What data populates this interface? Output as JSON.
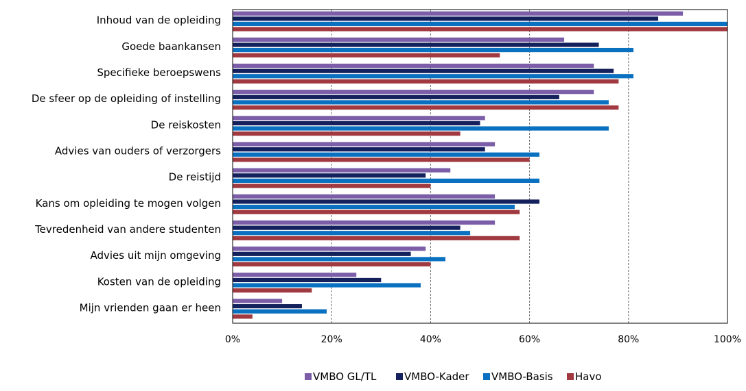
{
  "chart_data": {
    "type": "bar",
    "orientation": "horizontal",
    "categories": [
      "Inhoud van de opleiding",
      "Goede baankansen",
      "Specifieke beroepswens",
      "De sfeer op de opleiding of instelling",
      "De reiskosten",
      "Advies van ouders of verzorgers",
      "De reistijd",
      "Kans om opleiding te mogen volgen",
      "Tevredenheid van andere studenten",
      "Advies uit mijn omgeving",
      "Kosten van de opleiding",
      "Mijn vrienden gaan er heen"
    ],
    "series": [
      {
        "name": "VMBO GL/TL",
        "color": "#7B5EA7",
        "values": [
          91,
          67,
          73,
          73,
          51,
          53,
          44,
          53,
          53,
          39,
          25,
          10
        ]
      },
      {
        "name": "VMBO-Kader",
        "color": "#14215C",
        "values": [
          86,
          74,
          77,
          66,
          50,
          51,
          39,
          62,
          46,
          36,
          30,
          14
        ]
      },
      {
        "name": "VMBO-Basis",
        "color": "#0A70C0",
        "values": [
          100,
          81,
          81,
          76,
          76,
          62,
          62,
          57,
          48,
          43,
          38,
          19
        ]
      },
      {
        "name": "Havo",
        "color": "#A03A40",
        "values": [
          100,
          54,
          78,
          78,
          46,
          60,
          40,
          58,
          58,
          40,
          16,
          4
        ]
      }
    ],
    "xlim": [
      0,
      100
    ],
    "xticks": [
      "0%",
      "20%",
      "40%",
      "60%",
      "80%",
      "100%"
    ],
    "grid": "vertical dashed",
    "legend": "bottom"
  }
}
